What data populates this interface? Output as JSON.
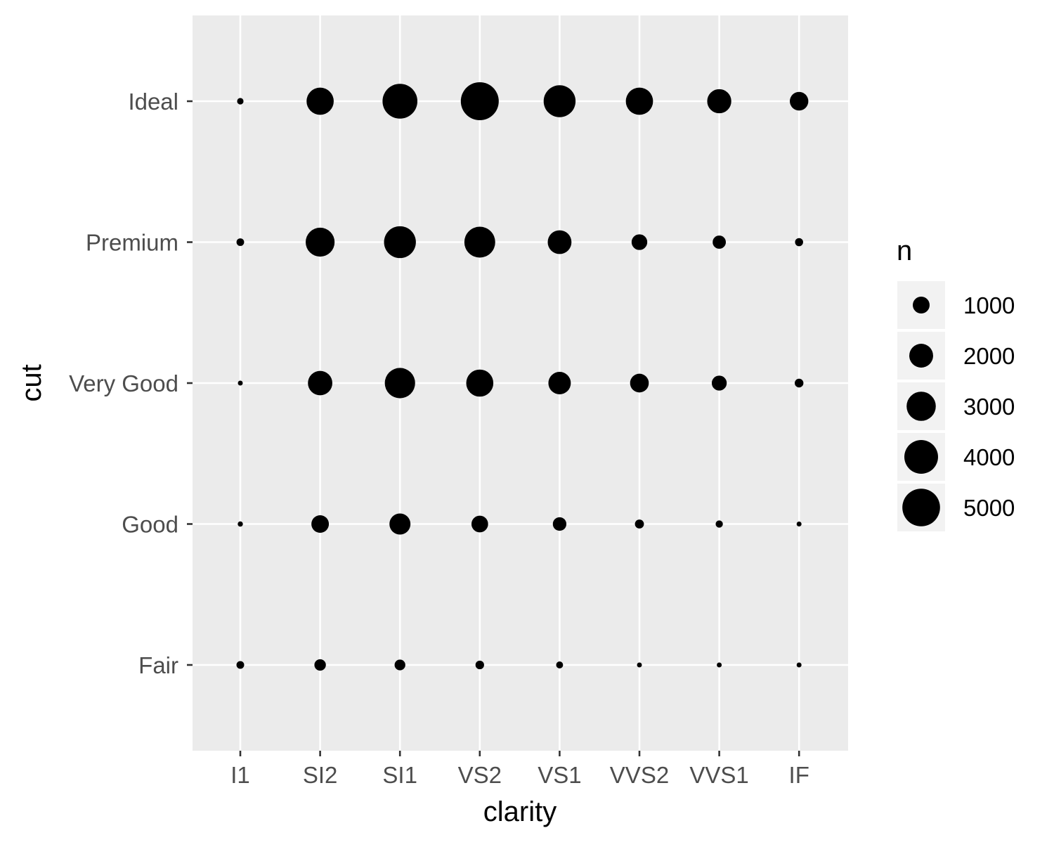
{
  "chart_data": {
    "type": "scatter",
    "xlabel": "clarity",
    "ylabel": "cut",
    "categories_x": [
      "I1",
      "SI2",
      "SI1",
      "VS2",
      "VS1",
      "VVS2",
      "VVS1",
      "IF"
    ],
    "categories_y": [
      "Fair",
      "Good",
      "Very Good",
      "Premium",
      "Ideal"
    ],
    "size_variable": "n",
    "grid": true,
    "colors": {
      "panel": "#ebebeb",
      "grid": "#ffffff",
      "point": "#000000",
      "tick": "#333333"
    },
    "points": {
      "Fair": [
        210,
        466,
        408,
        261,
        170,
        69,
        17,
        9
      ],
      "Good": [
        96,
        1081,
        1560,
        978,
        648,
        286,
        186,
        71
      ],
      "Very Good": [
        84,
        2100,
        3240,
        2591,
        1775,
        1235,
        789,
        268
      ],
      "Premium": [
        205,
        2949,
        3575,
        3357,
        1989,
        870,
        616,
        230
      ],
      "Ideal": [
        146,
        2598,
        4282,
        5071,
        3589,
        2606,
        2047,
        1212
      ]
    },
    "legend": {
      "title": "n",
      "position": "right",
      "entries": [
        {
          "label": "1000",
          "value": 1000
        },
        {
          "label": "2000",
          "value": 2000
        },
        {
          "label": "3000",
          "value": 3000
        },
        {
          "label": "4000",
          "value": 4000
        },
        {
          "label": "5000",
          "value": 5000
        }
      ]
    }
  }
}
